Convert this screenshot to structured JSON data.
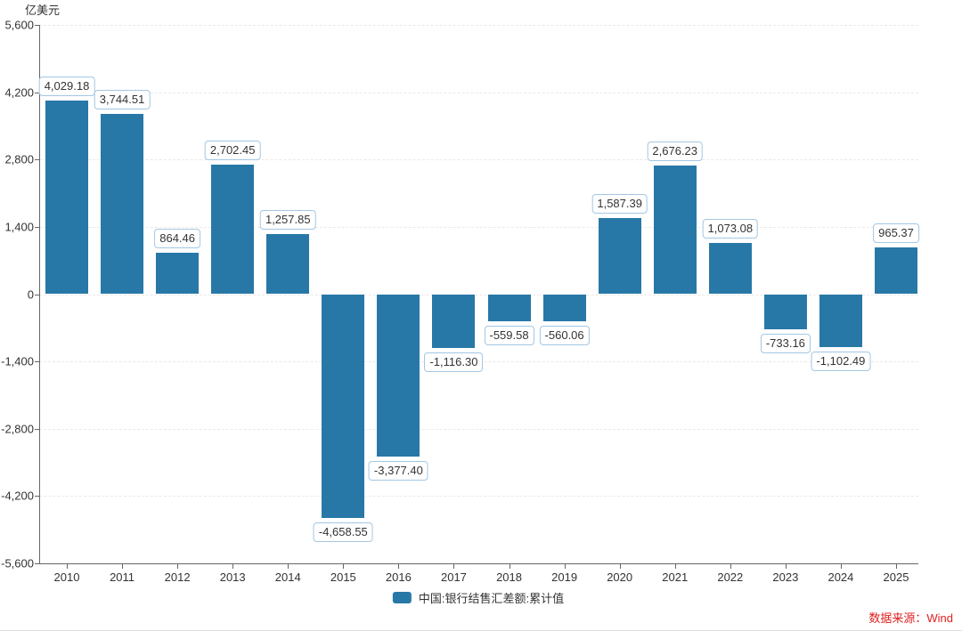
{
  "unit_label": "亿美元",
  "legend": {
    "label": "中国:银行结售汇差额:累计值"
  },
  "source_note": {
    "text": "数据来源：Wind",
    "color": "#e02020"
  },
  "colors": {
    "bar": "#2878a7",
    "value_box_border": "#a3c7e3",
    "axis": "#666666",
    "grid": "#e9e9e9",
    "text": "#333333"
  },
  "chart_data": {
    "type": "bar",
    "title": "",
    "xlabel": "",
    "ylabel": "亿美元",
    "legend_position": "bottom-center",
    "grid": "horizontal-dashed",
    "ylim": [
      -5600,
      5600
    ],
    "y_tick_values": [
      5600,
      4200,
      2800,
      1400,
      0,
      -1400,
      -2800,
      -4200,
      -5600
    ],
    "y_tick_labels": [
      "5,600",
      "4,200",
      "2,800",
      "1,400",
      "0",
      "-1,400",
      "-2,800",
      "-4,200",
      "-5,600"
    ],
    "categories": [
      "2010",
      "2011",
      "2012",
      "2013",
      "2014",
      "2015",
      "2016",
      "2017",
      "2018",
      "2019",
      "2020",
      "2021",
      "2022",
      "2023",
      "2024",
      "2025"
    ],
    "series": [
      {
        "name": "中国:银行结售汇差额:累计值",
        "values": [
          4029.18,
          3744.51,
          864.46,
          2702.45,
          1257.85,
          -4658.55,
          -3377.4,
          -1116.3,
          -559.58,
          -560.06,
          1587.39,
          2676.23,
          1073.08,
          -733.16,
          -1102.49,
          965.37
        ],
        "value_labels": [
          "4,029.18",
          "3,744.51",
          "864.46",
          "2,702.45",
          "1,257.85",
          "-4,658.55",
          "-3,377.40",
          "-1,116.30",
          "-559.58",
          "-560.06",
          "1,587.39",
          "2,676.23",
          "1,073.08",
          "-733.16",
          "-1,102.49",
          "965.37"
        ]
      }
    ]
  }
}
